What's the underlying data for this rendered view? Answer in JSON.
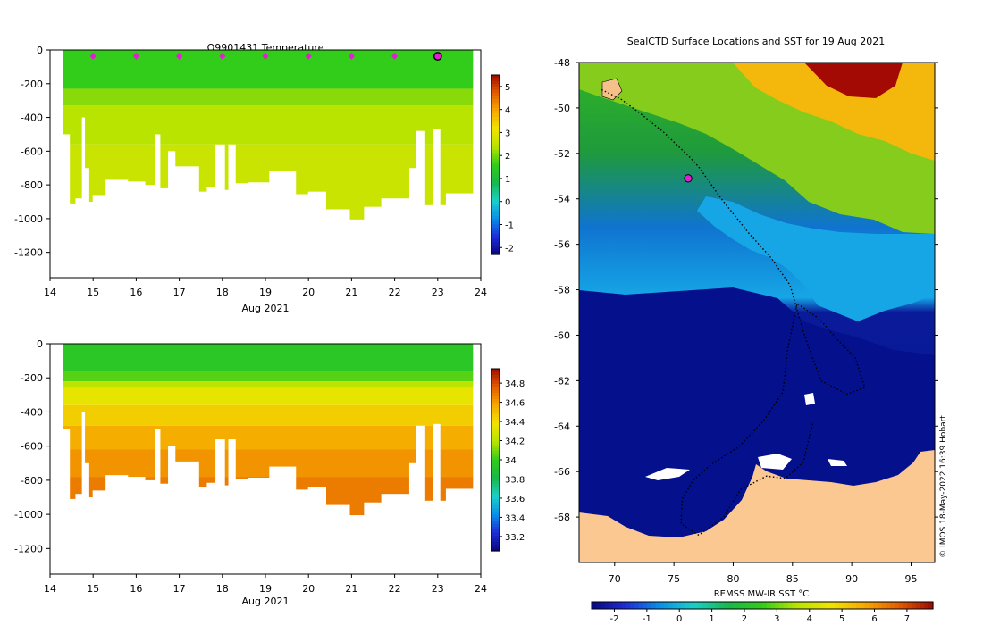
{
  "chart_data": [
    {
      "type": "heatmap",
      "title": "Q9901431  Temperature",
      "xlabel": "Aug 2021",
      "ylabel": "",
      "xlim": [
        14,
        24
      ],
      "ylim": [
        -1350,
        0
      ],
      "x_ticks": [
        "14",
        "15",
        "16",
        "17",
        "18",
        "19",
        "20",
        "21",
        "22",
        "23",
        "24"
      ],
      "y_ticks": [
        "0",
        "-200",
        "-400",
        "-600",
        "-800",
        "-1000",
        "-1200"
      ],
      "colorbar": {
        "ticks": [
          "5",
          "4",
          "3",
          "2",
          "1",
          "0",
          "-1",
          "-2"
        ],
        "min": -2.3,
        "max": 5.5
      },
      "markers_x": [
        15,
        16,
        17,
        18,
        19,
        20,
        21,
        22
      ],
      "current_marker_x": 23,
      "layers": [
        {
          "depth_top": 0,
          "depth_bottom": 230,
          "value": 1.6
        },
        {
          "depth_top": 230,
          "depth_bottom": 330,
          "value": 2.1
        },
        {
          "depth_top": 330,
          "depth_bottom": 560,
          "value": 2.4
        },
        {
          "depth_top": 560,
          "depth_bottom": 1010,
          "value": 2.6
        }
      ]
    },
    {
      "type": "heatmap",
      "title": "",
      "xlabel": "Aug 2021",
      "ylabel": "",
      "xlim": [
        14,
        24
      ],
      "ylim": [
        -1350,
        0
      ],
      "x_ticks": [
        "14",
        "15",
        "16",
        "17",
        "18",
        "19",
        "20",
        "21",
        "22",
        "23",
        "24"
      ],
      "y_ticks": [
        "0",
        "-200",
        "-400",
        "-600",
        "-800",
        "-1000",
        "-1200"
      ],
      "colorbar": {
        "ticks": [
          "34.8",
          "34.6",
          "34.4",
          "34.2",
          "34",
          "33.8",
          "33.6",
          "33.4",
          "33.2"
        ],
        "min": 33.05,
        "max": 34.95
      },
      "layers": [
        {
          "depth_top": 0,
          "depth_bottom": 160,
          "value": 33.95
        },
        {
          "depth_top": 160,
          "depth_bottom": 220,
          "value": 34.05
        },
        {
          "depth_top": 220,
          "depth_bottom": 260,
          "value": 34.2
        },
        {
          "depth_top": 260,
          "depth_bottom": 360,
          "value": 34.35
        },
        {
          "depth_top": 360,
          "depth_bottom": 480,
          "value": 34.45
        },
        {
          "depth_top": 480,
          "depth_bottom": 620,
          "value": 34.55
        },
        {
          "depth_top": 620,
          "depth_bottom": 780,
          "value": 34.62
        },
        {
          "depth_top": 780,
          "depth_bottom": 1010,
          "value": 34.68
        }
      ]
    },
    {
      "type": "heatmap",
      "title": "SealCTD Surface Locations and SST for 19 Aug 2021",
      "xlabel": "",
      "ylabel": "",
      "xlim": [
        67,
        97
      ],
      "ylim": [
        -70,
        -48
      ],
      "x_ticks": [
        "70",
        "75",
        "80",
        "85",
        "90",
        "95"
      ],
      "y_ticks": [
        "-48",
        "-50",
        "-52",
        "-54",
        "-56",
        "-58",
        "-60",
        "-62",
        "-64",
        "-66",
        "-68"
      ],
      "colorbar": {
        "label": "REMSS MW-IR SST °C",
        "ticks": [
          "-2",
          "-1",
          "0",
          "1",
          "2",
          "3",
          "4",
          "5",
          "6",
          "7"
        ],
        "min": -2.7,
        "max": 7.8
      },
      "credit": "© IMOS 18-May-2022 16:39 Hobart",
      "current_position": [
        76.2,
        -53.1
      ],
      "track": [
        [
          68.9,
          -49.2
        ],
        [
          70.5,
          -49.6
        ],
        [
          72.3,
          -50.3
        ],
        [
          74.2,
          -51.1
        ],
        [
          76.4,
          -52.2
        ],
        [
          77.1,
          -52.6
        ],
        [
          79.0,
          -54.0
        ],
        [
          81.3,
          -55.5
        ],
        [
          83.2,
          -56.6
        ],
        [
          84.8,
          -57.8
        ],
        [
          86.0,
          -60.0
        ],
        [
          87.4,
          -62.0
        ],
        [
          89.6,
          -62.6
        ],
        [
          91.1,
          -62.3
        ],
        [
          90.3,
          -61.0
        ],
        [
          88.8,
          -60.2
        ],
        [
          87.3,
          -59.3
        ],
        [
          85.4,
          -58.6
        ],
        [
          84.6,
          -60.6
        ],
        [
          84.2,
          -62.5
        ],
        [
          82.5,
          -63.8
        ],
        [
          80.5,
          -64.9
        ],
        [
          78.1,
          -65.7
        ],
        [
          76.6,
          -66.4
        ],
        [
          75.7,
          -67.2
        ],
        [
          75.6,
          -68.3
        ],
        [
          77.1,
          -68.8
        ],
        [
          79.2,
          -68.0
        ],
        [
          80.6,
          -66.8
        ],
        [
          82.8,
          -66.2
        ],
        [
          84.4,
          -66.3
        ],
        [
          85.9,
          -65.6
        ],
        [
          86.7,
          -63.9
        ]
      ]
    }
  ]
}
